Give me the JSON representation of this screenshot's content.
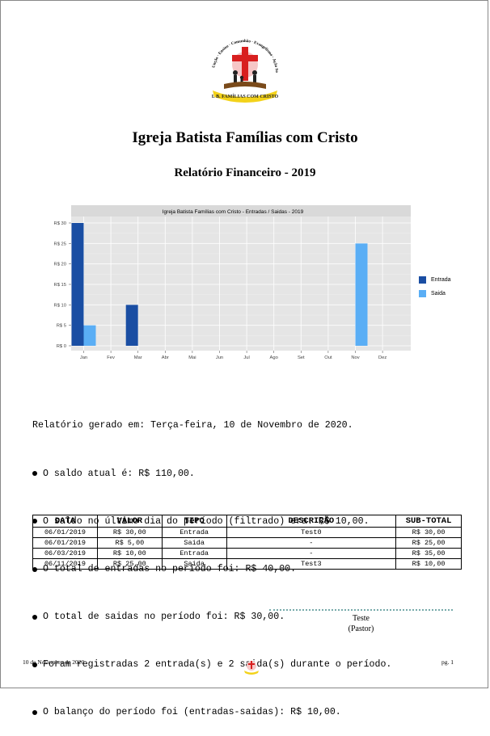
{
  "header": {
    "logo": {
      "name": "church-logo",
      "arc_text": [
        "Unção",
        "Ensino",
        "Comunhão",
        "Evangelismo",
        "Ação Social"
      ],
      "banner_text": "I. B. FAMÍLIAS COM CRISTO"
    },
    "title": "Igreja Batista Famílias com Cristo",
    "subtitle": "Relatório Financeiro - 2019"
  },
  "chart_data": {
    "type": "bar",
    "title": "Igreja Batista Famílias com Cristo - Entradas / Saidas - 2019",
    "categories": [
      "Jan",
      "Fev",
      "Mar",
      "Abr",
      "Mai",
      "Jun",
      "Jul",
      "Ago",
      "Set",
      "Out",
      "Nov",
      "Dez"
    ],
    "series": [
      {
        "name": "Entrada",
        "color": "#1a4ea3",
        "values": [
          30,
          0,
          10,
          0,
          0,
          0,
          0,
          0,
          0,
          0,
          0,
          0
        ]
      },
      {
        "name": "Saida",
        "color": "#5aaef5",
        "values": [
          5,
          0,
          0,
          0,
          0,
          0,
          0,
          0,
          0,
          0,
          25,
          0
        ]
      }
    ],
    "yticks": [
      "R$ 0",
      "R$ 5",
      "R$ 10",
      "R$ 15",
      "R$ 20",
      "R$ 25",
      "R$ 30"
    ],
    "ylim": [
      0,
      31.5
    ],
    "grid": true,
    "legend_position": "right",
    "background": "#e5e5e5"
  },
  "report": {
    "generated": "Relatório gerado em: Terça-feira, 10 de Novembro de 2020.",
    "items": [
      "O saldo atual é: R$ 110,00.",
      "O saldo no último dia do período (filtrado) era: R$ 10,00.",
      "O total de entradas no período foi: R$ 40,00.",
      "O total de saidas no período foi: R$ 30,00.",
      "Foram registradas 2 entrada(s) e 2 saida(s) durante o período.",
      "O balanço do período foi (entradas-saidas): R$ 10,00."
    ]
  },
  "table": {
    "columns": [
      "DATA",
      "VALOR",
      "TIPO",
      "DESCRIÇÃO",
      "SUB-TOTAL"
    ],
    "rows": [
      [
        "06/01/2019",
        "R$ 30,00",
        "Entrada",
        "Test0",
        "R$ 30,00"
      ],
      [
        "06/01/2019",
        "R$ 5,00",
        "Saida",
        "-",
        "R$ 25,00"
      ],
      [
        "06/03/2019",
        "R$ 10,00",
        "Entrada",
        "-",
        "R$ 35,00"
      ],
      [
        "06/11/2019",
        "R$ 25,00",
        "Saida",
        "Test3",
        "R$ 10,00"
      ]
    ]
  },
  "signature": {
    "name": "Teste",
    "role": "(Pastor)"
  },
  "footer": {
    "date": "10 de Novembro de 2020",
    "page": "pg. 1"
  }
}
